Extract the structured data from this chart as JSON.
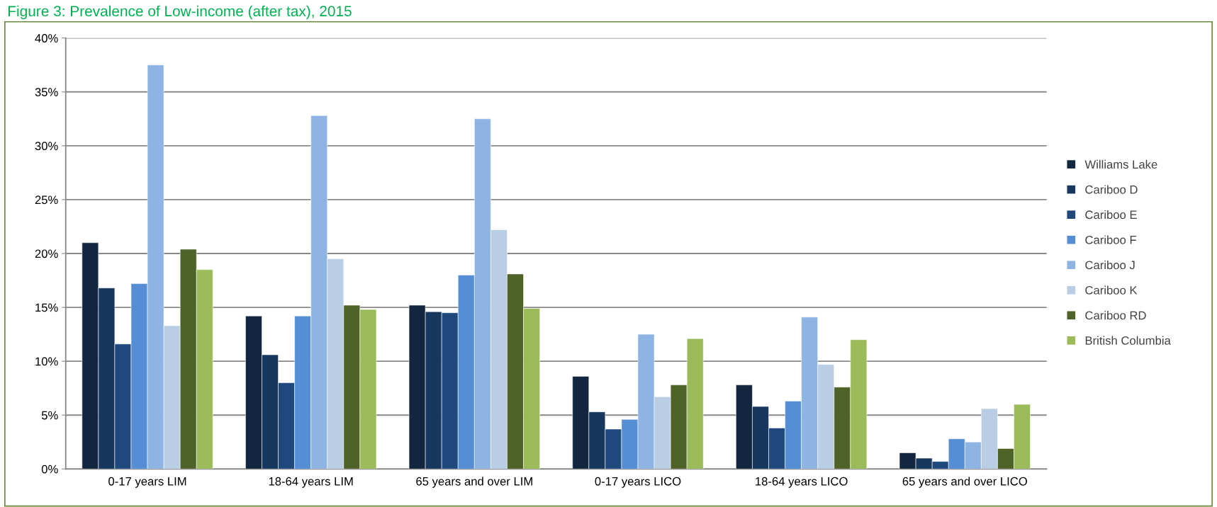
{
  "chart_data": {
    "type": "bar",
    "title": "Figure 3: Prevalence of Low-income (after tax), 2015",
    "categories": [
      "0-17 years LIM",
      "18-64 years LIM",
      "65 years and over LIM",
      "0-17 years LICO",
      "18-64 years LICO",
      "65 years and over LICO"
    ],
    "series": [
      {
        "name": "Williams Lake",
        "color": "#12263f",
        "values": [
          21.0,
          14.2,
          15.2,
          8.6,
          7.8,
          1.5
        ]
      },
      {
        "name": "Cariboo D",
        "color": "#17375e",
        "values": [
          16.8,
          10.6,
          14.6,
          5.3,
          5.8,
          1.0
        ]
      },
      {
        "name": "Cariboo E",
        "color": "#1f497d",
        "values": [
          11.6,
          8.0,
          14.5,
          3.7,
          3.8,
          0.7
        ]
      },
      {
        "name": "Cariboo F",
        "color": "#558ed5",
        "values": [
          17.2,
          14.2,
          18.0,
          4.6,
          6.3,
          2.8
        ]
      },
      {
        "name": "Cariboo J",
        "color": "#8eb4e3",
        "values": [
          37.5,
          32.8,
          32.5,
          12.5,
          14.1,
          2.5
        ]
      },
      {
        "name": "Cariboo K",
        "color": "#b9cde5",
        "values": [
          13.3,
          19.5,
          22.2,
          6.7,
          9.7,
          5.6
        ]
      },
      {
        "name": "Cariboo RD",
        "color": "#4f6228",
        "values": [
          20.4,
          15.2,
          18.1,
          7.8,
          7.6,
          1.9
        ]
      },
      {
        "name": "British Columbia",
        "color": "#9bbb59",
        "values": [
          18.5,
          14.8,
          14.9,
          12.1,
          12.0,
          6.0
        ]
      }
    ],
    "ylim": [
      0,
      40
    ],
    "yticks": [
      {
        "value": 0,
        "label": "0%"
      },
      {
        "value": 5,
        "label": "5%"
      },
      {
        "value": 10,
        "label": "10%"
      },
      {
        "value": 15,
        "label": "15%"
      },
      {
        "value": 20,
        "label": "20%"
      },
      {
        "value": 25,
        "label": "25%"
      },
      {
        "value": 30,
        "label": "30%"
      },
      {
        "value": 35,
        "label": "35%"
      },
      {
        "value": 40,
        "label": "40%"
      }
    ],
    "grid": "y",
    "legend": "right"
  }
}
